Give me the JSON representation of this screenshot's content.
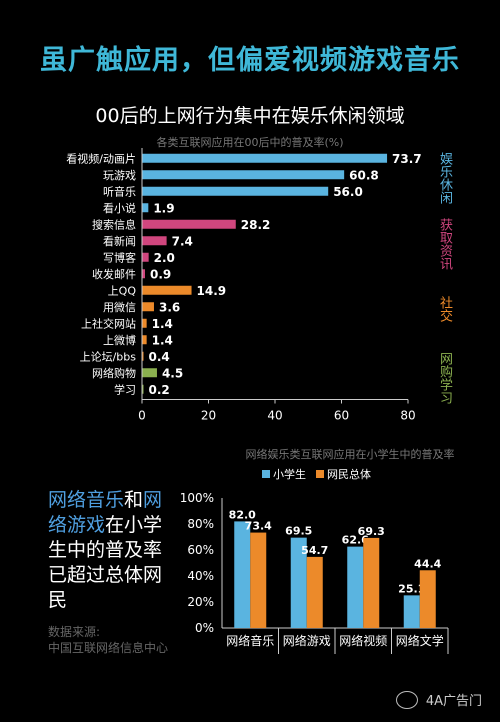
{
  "headline": "虽广触应用，但偏爱视频游戏音乐",
  "subhead": "00后的上网行为集中在娱乐休闲领域",
  "colors": {
    "entertainment": "#5ab4e0",
    "info": "#d0467e",
    "social": "#ec8a2a",
    "commerce": "#8bb04f",
    "students": "#5ab4e0",
    "overall": "#ec8a2a"
  },
  "groups": [
    {
      "label": "娱乐休闲",
      "color": "#5ab4e0"
    },
    {
      "label": "获取资讯",
      "color": "#d0467e"
    },
    {
      "label": "社交",
      "color": "#ec8a2a"
    },
    {
      "label": "网购学习",
      "color": "#8bb04f"
    }
  ],
  "chart_data": [
    {
      "type": "bar",
      "orientation": "horizontal",
      "title": "各类互联网应用在00后中的普及率(%)",
      "categories": [
        "看视频/动画片",
        "玩游戏",
        "听音乐",
        "看小说",
        "搜索信息",
        "看新闻",
        "写博客",
        "收发邮件",
        "上QQ",
        "用微信",
        "上社交网站",
        "上微博",
        "上论坛/bbs",
        "网络购物",
        "学习"
      ],
      "values": [
        73.7,
        60.8,
        56.0,
        1.9,
        28.2,
        7.4,
        2.0,
        0.9,
        14.9,
        3.6,
        1.4,
        1.4,
        0.4,
        4.5,
        0.2
      ],
      "value_labels": [
        "73.7",
        "60.8",
        "56.0",
        "1.9",
        "28.2",
        "7.4",
        "2.0",
        "0.9",
        "14.9",
        "3.6",
        "1.4",
        "1.4",
        "0.4",
        "4.5",
        "0.2"
      ],
      "group_index": [
        0,
        0,
        0,
        0,
        1,
        1,
        1,
        1,
        2,
        2,
        2,
        2,
        2,
        3,
        3
      ],
      "xlim": [
        0,
        80
      ],
      "xticks": [
        "0",
        "20",
        "40",
        "60",
        "80"
      ],
      "grid": false
    },
    {
      "type": "bar",
      "title": "网络娱乐类互联网应用在小学生中的普及率",
      "categories": [
        "网络音乐",
        "网络游戏",
        "网络视频",
        "网络文学"
      ],
      "series": [
        {
          "name": "小学生",
          "values": [
            82.0,
            69.5,
            62.6,
            25.1
          ],
          "labels": [
            "82.0",
            "69.5",
            "62.6",
            "25.1"
          ]
        },
        {
          "name": "网民总体",
          "values": [
            73.4,
            54.7,
            69.3,
            44.4
          ],
          "labels": [
            "73.4",
            "54.7",
            "69.3",
            "44.4"
          ]
        }
      ],
      "ylim": [
        0,
        100
      ],
      "yticks": [
        "0%",
        "20%",
        "40%",
        "60%",
        "80%",
        "100%"
      ],
      "legend": "top",
      "grid": false
    }
  ],
  "note": {
    "part1": "网络音乐",
    "part2": "和",
    "part3": "网络游戏",
    "part4": "在小学生中的普及率已超过总体网民"
  },
  "source": {
    "line1": "数据来源:",
    "line2": "中国互联网络信息中心"
  },
  "watermark": "4A广告门"
}
